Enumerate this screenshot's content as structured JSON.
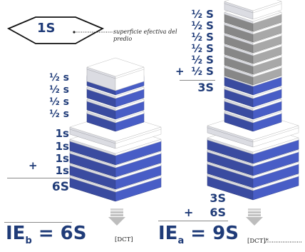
{
  "diamond_label": "1S",
  "annotation": "superficie efectiva del predio",
  "left_terms": {
    "halves": [
      "½ s",
      "½ s",
      "½ s",
      "½ s"
    ],
    "ones": [
      "1s",
      "1s",
      "1s",
      "1s"
    ],
    "plus": "+",
    "total": "6S"
  },
  "right_terms": {
    "halves": [
      "½ S",
      "½ S",
      "½ S",
      "½ S",
      "½ S",
      "½ S"
    ],
    "plus": "+",
    "total": "3S"
  },
  "right_sum": {
    "first": "3S",
    "plus": "+",
    "second": "6S"
  },
  "ie_b": {
    "prefix": "IE",
    "sub": "b",
    "value": "= 6S"
  },
  "ie_a": {
    "prefix": "IE",
    "sub": "a",
    "value": "= 9S"
  },
  "dct_left": "[DCT]",
  "dct_right": "[DCT]*",
  "colors": {
    "blue_floor": "#3d4fa8",
    "white_floor": "#e6e8ee",
    "grey_floor": "#8e8e8e",
    "text_blue": "#1f3b78"
  }
}
